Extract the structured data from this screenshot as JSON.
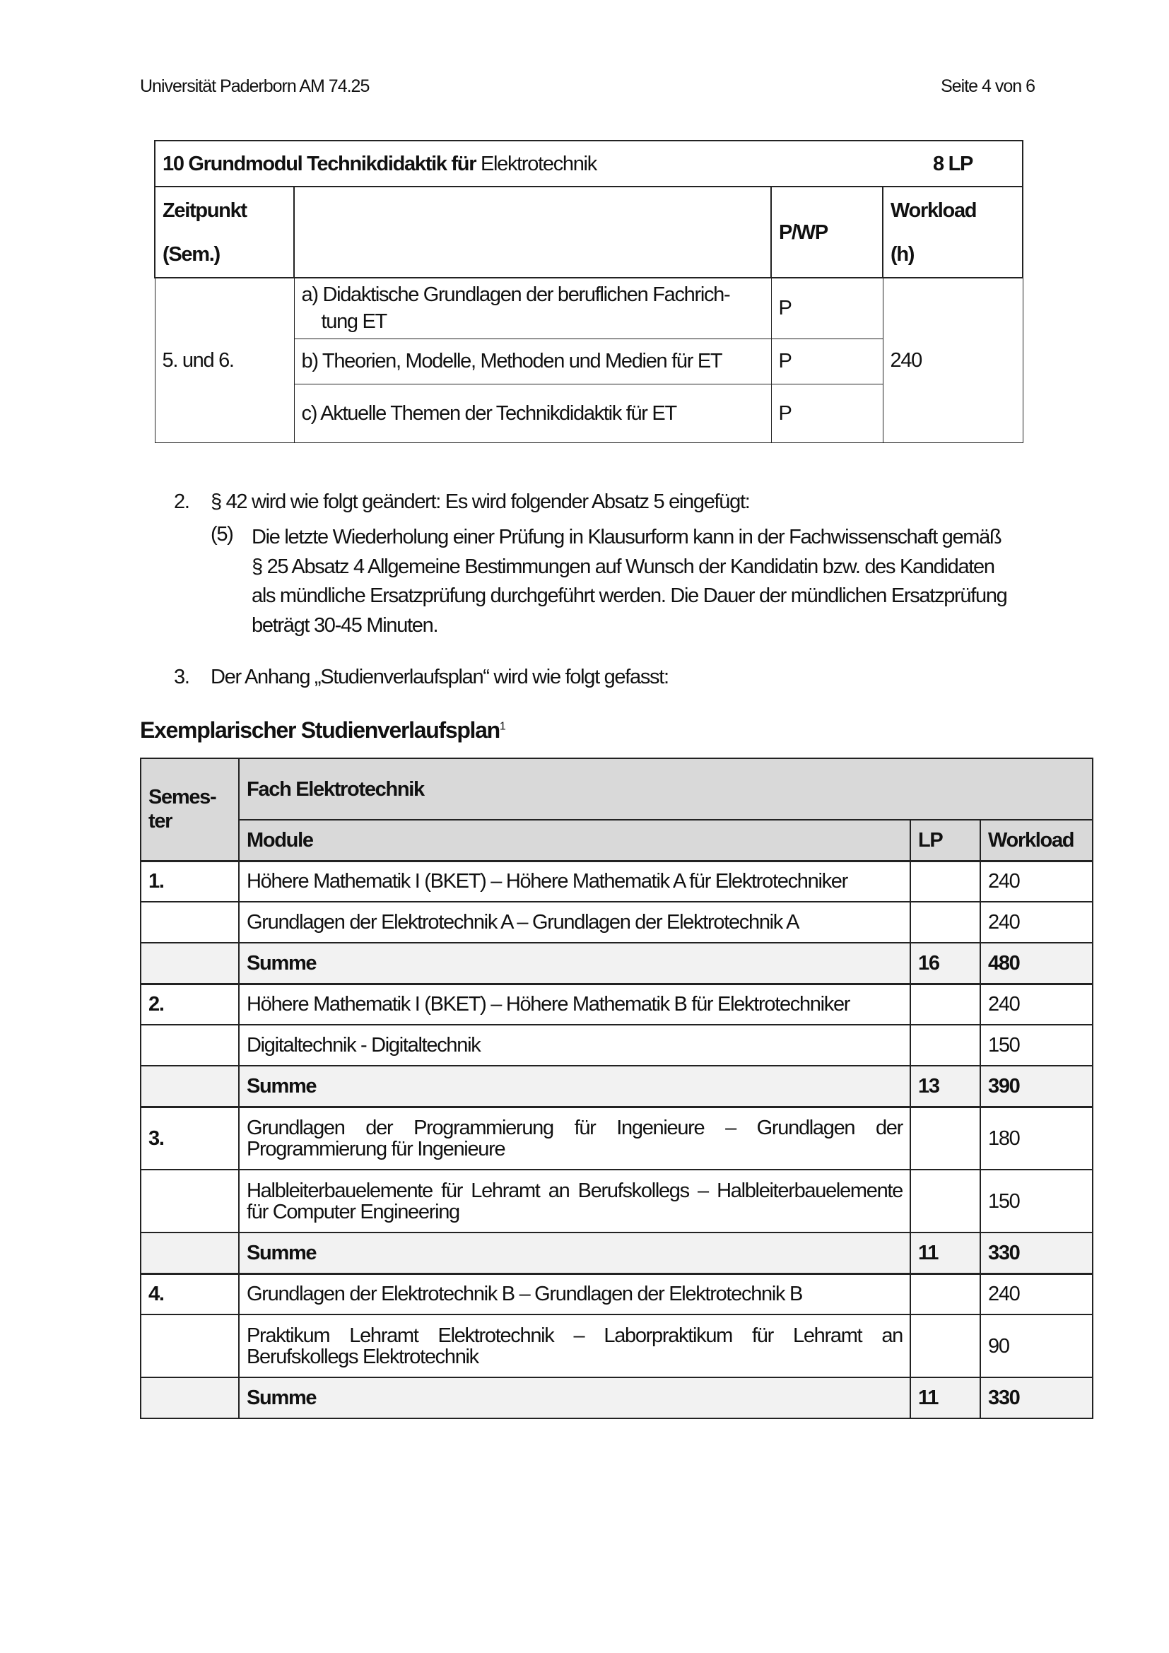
{
  "header": {
    "left": "Universität Paderborn AM 74.25",
    "right": "Seite 4 von 6"
  },
  "module_table": {
    "title_bold": "10 Grundmodul Technikdidaktik für",
    "title_normal": "Elektrotechnik",
    "lp": "8 LP",
    "col_time_1": "Zeitpunkt",
    "col_time_2": "(Sem.)",
    "col_pwp": "P/WP",
    "col_workload_1": "Workload",
    "col_workload_2": "(h)",
    "time": "5. und 6.",
    "workload": "240",
    "rows": [
      {
        "title": "a) Didaktische Grundlagen der beruflichen Fachrich-",
        "title2": "tung ET",
        "pwp": "P"
      },
      {
        "title": "b) Theorien, Modelle, Methoden und Medien für ET",
        "pwp": "P"
      },
      {
        "title": "c) Aktuelle Themen der Technikdidaktik für ET",
        "pwp": "P"
      }
    ]
  },
  "items": [
    {
      "num": "2.",
      "text": "§ 42 wird wie folgt geändert: Es wird folgender Absatz 5 eingefügt:"
    },
    {
      "num": "3.",
      "text": "Der Anhang „Studienverlaufsplan“ wird wie folgt gefasst:"
    }
  ],
  "paragraph5": {
    "num": "(5)",
    "lines": [
      "Die letzte Wiederholung einer Prüfung in Klausurform kann in der Fachwissenschaft gemäß",
      "§ 25 Absatz 4 Allgemeine Bestimmungen auf Wunsch der Kandidatin bzw. des Kandidaten",
      "als mündliche Ersatzprüfung durchgeführt werden. Die Dauer der mündlichen Ersatzprüfung",
      "beträgt 30-45 Minuten."
    ]
  },
  "plan": {
    "heading": "Exemplarischer Studienverlaufsplan",
    "footnote": "1",
    "col_semester": "Semes-ter",
    "col_fach": "Fach Elektrotechnik",
    "col_module": "Module",
    "col_lp": "LP",
    "col_workload": "Workload",
    "rows": [
      {
        "sem": "1.",
        "module": "Höhere Mathematik I (BKET) – Höhere Mathematik A für Elektrotechniker",
        "lp": "",
        "workload": "240"
      },
      {
        "sem": "",
        "module": "Grundlagen der Elektrotechnik A – Grundlagen der Elektrotechnik A",
        "lp": "",
        "workload": "240"
      },
      {
        "sem": "",
        "module": "Summe",
        "lp": "16",
        "workload": "480",
        "sum": true
      },
      {
        "sem": "2.",
        "module": "Höhere Mathematik I (BKET) – Höhere Mathematik B für Elektrotechniker",
        "lp": "",
        "workload": "240"
      },
      {
        "sem": "",
        "module": "Digitaltechnik - Digitaltechnik",
        "lp": "",
        "workload": "150"
      },
      {
        "sem": "",
        "module": "Summe",
        "lp": "13",
        "workload": "390",
        "sum": true
      },
      {
        "sem": "3.",
        "module": "Grundlagen der Programmierung für Ingenieure – Grundlagen der Programmierung für Ingenieure",
        "lp": "",
        "workload": "180"
      },
      {
        "sem": "",
        "module": "Halbleiterbauelemente für Lehramt an Berufskollegs – Halbleiterbauelemente für Computer Engineering",
        "lp": "",
        "workload": "150"
      },
      {
        "sem": "",
        "module": "Summe",
        "lp": "11",
        "workload": "330",
        "sum": true
      },
      {
        "sem": "4.",
        "module": "Grundlagen der Elektrotechnik B – Grundlagen der Elektrotechnik B",
        "lp": "",
        "workload": "240"
      },
      {
        "sem": "",
        "module": "Praktikum Lehramt Elektrotechnik – Laborpraktikum für Lehramt an Berufskollegs Elektrotechnik",
        "lp": "",
        "workload": "90"
      },
      {
        "sem": "",
        "module": "Summe",
        "lp": "11",
        "workload": "330",
        "sum": true
      }
    ]
  }
}
